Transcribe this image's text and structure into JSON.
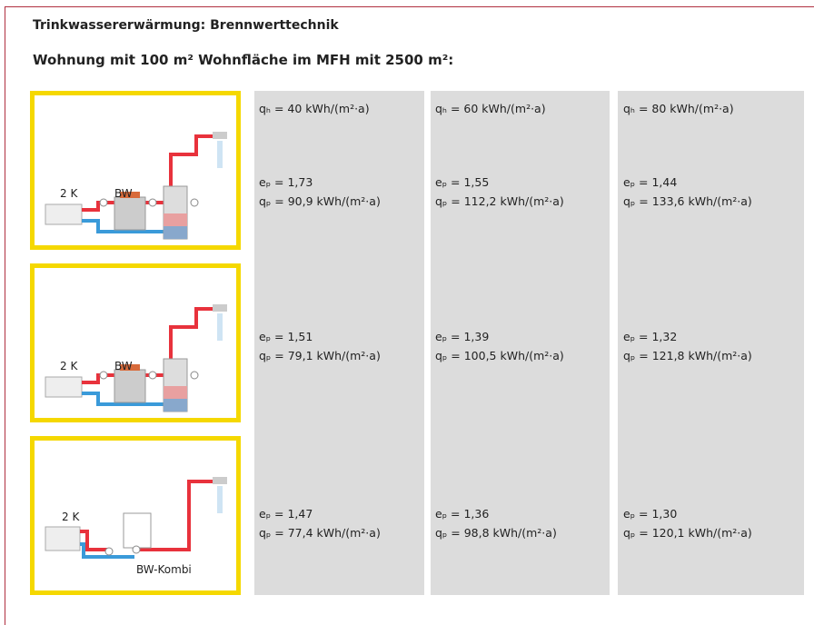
{
  "header": {
    "title": "Trinkwassererwärmung: Brennwerttechnik",
    "subtitle": "Wohnung mit 100 m² Wohnfläche im MFH mit 2500 m²:"
  },
  "table": {
    "column_headers": [
      "qₕ = 40 kWh/(m²·a)",
      "qₕ = 60 kWh/(m²·a)",
      "qₕ = 80 kWh/(m²·a)"
    ],
    "rows": [
      {
        "diagram_labels": [
          "2 K",
          "BW"
        ],
        "cells": [
          [
            "eₚ = 1,73",
            "qₚ = 90,9 kWh/(m²·a)"
          ],
          [
            "eₚ = 1,55",
            "qₚ = 112,2 kWh/(m²·a)"
          ],
          [
            "eₚ = 1,44",
            "qₚ = 133,6 kWh/(m²·a)"
          ]
        ]
      },
      {
        "diagram_labels": [
          "2 K",
          "BW"
        ],
        "cells": [
          [
            "eₚ = 1,51",
            "qₚ = 79,1 kWh/(m²·a)"
          ],
          [
            "eₚ = 1,39",
            "qₚ = 100,5 kWh/(m²·a)"
          ],
          [
            "eₚ = 1,32",
            "qₚ = 121,8 kWh/(m²·a)"
          ]
        ]
      },
      {
        "diagram_labels": [
          "2 K",
          "BW-Kombi"
        ],
        "cells": [
          [
            "eₚ = 1,47",
            "qₚ = 77,4 kWh/(m²·a)"
          ],
          [
            "eₚ = 1,36",
            "qₚ = 98,8 kWh/(m²·a)"
          ],
          [
            "eₚ = 1,30",
            "qₚ = 120,1 kWh/(m²·a)"
          ]
        ]
      }
    ]
  }
}
